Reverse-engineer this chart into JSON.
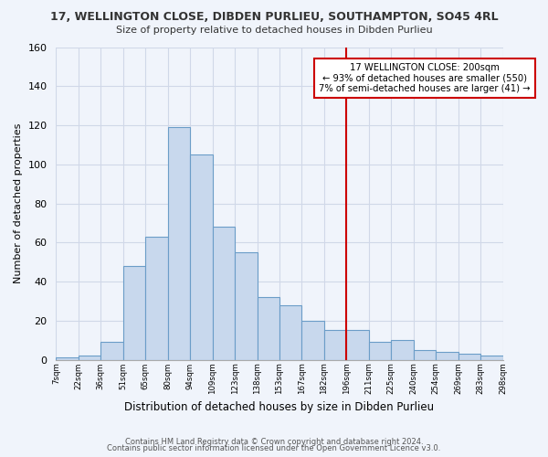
{
  "title": "17, WELLINGTON CLOSE, DIBDEN PURLIEU, SOUTHAMPTON, SO45 4RL",
  "subtitle": "Size of property relative to detached houses in Dibden Purlieu",
  "xlabel": "Distribution of detached houses by size in Dibden Purlieu",
  "ylabel": "Number of detached properties",
  "bin_labels": [
    "7sqm",
    "22sqm",
    "36sqm",
    "51sqm",
    "65sqm",
    "80sqm",
    "94sqm",
    "109sqm",
    "123sqm",
    "138sqm",
    "153sqm",
    "167sqm",
    "182sqm",
    "196sqm",
    "211sqm",
    "225sqm",
    "240sqm",
    "254sqm",
    "269sqm",
    "283sqm",
    "298sqm"
  ],
  "bar_values": [
    1,
    2,
    9,
    48,
    63,
    119,
    105,
    68,
    55,
    32,
    28,
    20,
    15,
    15,
    9,
    10,
    5,
    4,
    3,
    2
  ],
  "bar_color": "#c8d8ed",
  "bar_edge_color": "#6b9dc8",
  "ylim": [
    0,
    160
  ],
  "yticks": [
    0,
    20,
    40,
    60,
    80,
    100,
    120,
    140,
    160
  ],
  "vline_position": 13,
  "vline_color": "#cc0000",
  "annotation_title": "17 WELLINGTON CLOSE: 200sqm",
  "annotation_line1": "← 93% of detached houses are smaller (550)",
  "annotation_line2": "7% of semi-detached houses are larger (41) →",
  "annotation_box_color": "#ffffff",
  "annotation_box_edge": "#cc0000",
  "footer1": "Contains HM Land Registry data © Crown copyright and database right 2024.",
  "footer2": "Contains public sector information licensed under the Open Government Licence v3.0.",
  "background_color": "#f0f4fb",
  "grid_color": "#d0d8e8"
}
